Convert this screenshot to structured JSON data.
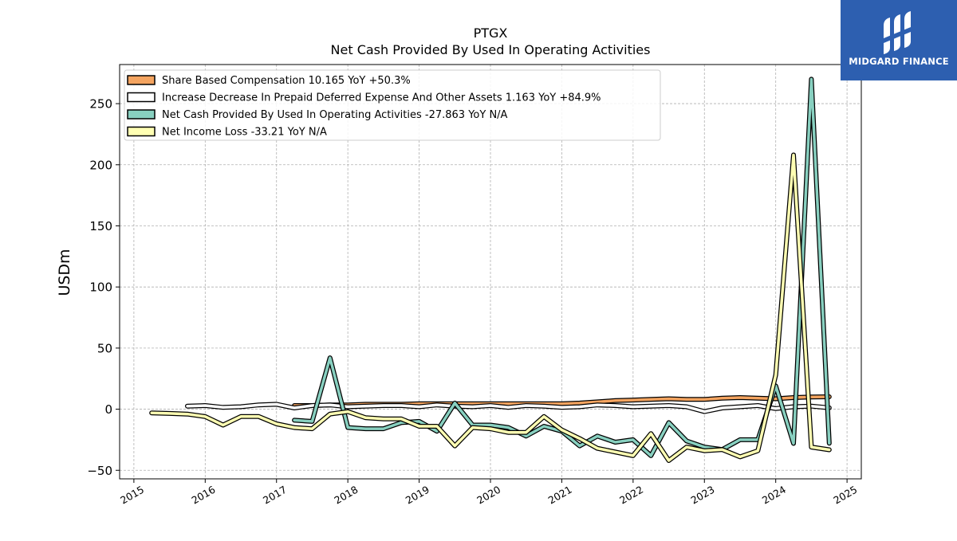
{
  "brand": {
    "name": "MIDGARD FINANCE",
    "color": "#2d5fb0"
  },
  "chart_data": {
    "type": "line",
    "title": "PTGX",
    "subtitle": "Net Cash Provided By Used In Operating Activities",
    "xlabel": "",
    "ylabel": "USDm",
    "xlim": [
      2014.8,
      2025.2
    ],
    "ylim": [
      -57,
      282
    ],
    "x_ticks": [
      2015,
      2016,
      2017,
      2018,
      2019,
      2020,
      2021,
      2022,
      2023,
      2024,
      2025
    ],
    "x_tick_labels": [
      "2015",
      "2016",
      "2017",
      "2018",
      "2019",
      "2020",
      "2021",
      "2022",
      "2023",
      "2024",
      "2025"
    ],
    "y_ticks": [
      -50,
      0,
      50,
      100,
      150,
      200,
      250
    ],
    "y_tick_labels": [
      "−50",
      "0",
      "50",
      "100",
      "150",
      "200",
      "250"
    ],
    "grid": true,
    "legend_position": "top-left",
    "series": [
      {
        "name": "Share Based Compensation",
        "legend_label": "Share Based Compensation  10.165 YoY +50.3%",
        "color": "#f4a460",
        "x": [
          2017.25,
          2017.5,
          2017.75,
          2018.0,
          2018.25,
          2018.5,
          2018.75,
          2019.0,
          2019.25,
          2019.5,
          2019.75,
          2020.0,
          2020.25,
          2020.5,
          2020.75,
          2021.0,
          2021.25,
          2021.5,
          2021.75,
          2022.0,
          2022.25,
          2022.5,
          2022.75,
          2023.0,
          2023.25,
          2023.5,
          2023.75,
          2024.0,
          2024.25,
          2024.5,
          2024.75
        ],
        "values": [
          3,
          3,
          3.5,
          3.5,
          4,
          4,
          4,
          4.5,
          4.5,
          4.5,
          4.5,
          4.5,
          4.5,
          4.5,
          4.5,
          4.5,
          5,
          6,
          7,
          7.5,
          8,
          8.5,
          8,
          8,
          9,
          9.5,
          9,
          8.5,
          9.5,
          10,
          10.165
        ]
      },
      {
        "name": "Increase Decrease In Prepaid Deferred Expense And Other Assets",
        "legend_label": "Increase Decrease In Prepaid Deferred Expense And Other Assets  1.163 YoY +84.9%",
        "color": "#ffffff",
        "x": [
          2015.75,
          2016.0,
          2016.25,
          2016.5,
          2016.75,
          2017.0,
          2017.25,
          2017.5,
          2017.75,
          2018.0,
          2018.25,
          2018.5,
          2018.75,
          2019.0,
          2019.25,
          2019.5,
          2019.75,
          2020.0,
          2020.25,
          2020.5,
          2020.75,
          2021.0,
          2021.25,
          2021.5,
          2021.75,
          2022.0,
          2022.25,
          2022.5,
          2022.75,
          2023.0,
          2023.25,
          2023.5,
          2023.75,
          2024.0,
          2024.25,
          2024.5,
          2024.75
        ],
        "values": [
          2.5,
          3,
          1.5,
          2,
          3.5,
          4,
          1,
          3,
          3.5,
          2,
          2.5,
          3,
          3,
          2,
          3.5,
          2.5,
          2,
          3,
          1.5,
          3,
          2.5,
          1.5,
          2,
          3.5,
          3,
          2,
          2.5,
          3,
          2,
          -2,
          1,
          2,
          3,
          0.5,
          2,
          2.5,
          1.163
        ]
      },
      {
        "name": "Net Cash Provided By Used In Operating Activities",
        "legend_label": "Net Cash Provided By Used In Operating Activities  -27.863 YoY N/A",
        "color": "#88d0c0",
        "x": [
          2017.25,
          2017.5,
          2017.75,
          2018.0,
          2018.25,
          2018.5,
          2018.75,
          2019.0,
          2019.25,
          2019.5,
          2019.75,
          2020.0,
          2020.25,
          2020.5,
          2020.75,
          2021.0,
          2021.25,
          2021.5,
          2021.75,
          2022.0,
          2022.25,
          2022.5,
          2022.75,
          2023.0,
          2023.25,
          2023.5,
          2023.75,
          2024.0,
          2024.25,
          2024.5,
          2024.75
        ],
        "values": [
          -9,
          -10,
          42,
          -15,
          -16,
          -16,
          -11,
          -10,
          -18,
          5,
          -13,
          -13,
          -15,
          -22,
          -14,
          -18,
          -30,
          -22,
          -27,
          -25,
          -38,
          -11,
          -26,
          -31,
          -33,
          -25,
          -25,
          19,
          -28,
          270,
          -27.863
        ]
      },
      {
        "name": "Net Income Loss",
        "legend_label": "Net Income Loss  -33.21 YoY N/A",
        "color": "#ffffb3",
        "x": [
          2015.25,
          2015.5,
          2015.75,
          2016.0,
          2016.25,
          2016.5,
          2016.75,
          2017.0,
          2017.25,
          2017.5,
          2017.75,
          2018.0,
          2018.25,
          2018.5,
          2018.75,
          2019.0,
          2019.25,
          2019.5,
          2019.75,
          2020.0,
          2020.25,
          2020.5,
          2020.75,
          2021.0,
          2021.25,
          2021.5,
          2021.75,
          2022.0,
          2022.25,
          2022.5,
          2022.75,
          2023.0,
          2023.25,
          2023.5,
          2023.75,
          2024.0,
          2024.25,
          2024.5,
          2024.75
        ],
        "values": [
          -3,
          -3.5,
          -4,
          -6,
          -13,
          -6,
          -6,
          -12,
          -15,
          -16,
          -4,
          -2,
          -7,
          -8,
          -8,
          -14,
          -14,
          -30,
          -15,
          -16,
          -19,
          -19,
          -6,
          -17,
          -24,
          -32,
          -35,
          -38,
          -20,
          -42,
          -31,
          -34,
          -33,
          -39,
          -34,
          28,
          208,
          -31,
          -33.21
        ]
      }
    ]
  }
}
